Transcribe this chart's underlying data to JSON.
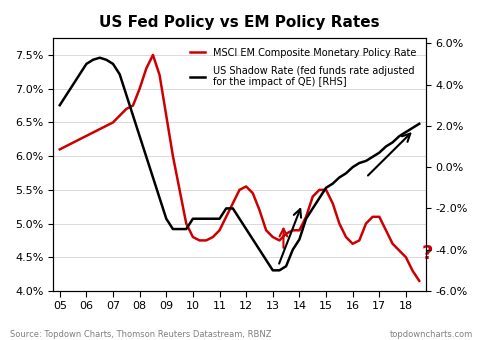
{
  "title": "US Fed Policy vs EM Policy Rates",
  "source": "Source: Topdown Charts, Thomson Reuters Datastream, RBNZ",
  "website": "topdowncharts.com",
  "left_ylim": [
    4.0,
    7.75
  ],
  "right_ylim": [
    -6.0,
    6.25
  ],
  "left_yticks": [
    4.0,
    4.5,
    5.0,
    5.5,
    6.0,
    6.5,
    7.0,
    7.5
  ],
  "right_yticks": [
    -6.0,
    -4.0,
    -2.0,
    0.0,
    2.0,
    4.0,
    6.0
  ],
  "xticks": [
    2005,
    2006,
    2007,
    2008,
    2009,
    2010,
    2011,
    2012,
    2013,
    2014,
    2015,
    2016,
    2017,
    2018
  ],
  "xticklabels": [
    "05",
    "06",
    "07",
    "08",
    "09",
    "10",
    "11",
    "12",
    "13",
    "14",
    "15",
    "16",
    "17",
    "18"
  ],
  "em_color": "#cc0000",
  "us_color": "#000000",
  "legend_em": "MSCI EM Composite Monetary Policy Rate",
  "legend_us": "US Shadow Rate (fed funds rate adjusted\nfor the impact of QE) [RHS]",
  "em_x": [
    2005.0,
    2005.25,
    2005.5,
    2005.75,
    2006.0,
    2006.25,
    2006.5,
    2006.75,
    2007.0,
    2007.25,
    2007.5,
    2007.75,
    2008.0,
    2008.25,
    2008.5,
    2008.75,
    2009.0,
    2009.25,
    2009.5,
    2009.75,
    2010.0,
    2010.25,
    2010.5,
    2010.75,
    2011.0,
    2011.25,
    2011.5,
    2011.75,
    2012.0,
    2012.25,
    2012.5,
    2012.75,
    2013.0,
    2013.25,
    2013.5,
    2013.75,
    2014.0,
    2014.25,
    2014.5,
    2014.75,
    2015.0,
    2015.25,
    2015.5,
    2015.75,
    2016.0,
    2016.25,
    2016.5,
    2016.75,
    2017.0,
    2017.25,
    2017.5,
    2017.75,
    2018.0,
    2018.25,
    2018.5
  ],
  "em_y": [
    6.1,
    6.15,
    6.2,
    6.25,
    6.3,
    6.35,
    6.4,
    6.45,
    6.5,
    6.6,
    6.7,
    6.75,
    7.0,
    7.3,
    7.5,
    7.2,
    6.6,
    6.0,
    5.5,
    5.0,
    4.8,
    4.75,
    4.75,
    4.8,
    4.9,
    5.1,
    5.3,
    5.5,
    5.55,
    5.45,
    5.2,
    4.9,
    4.8,
    4.75,
    4.85,
    4.9,
    4.9,
    5.1,
    5.4,
    5.5,
    5.5,
    5.3,
    5.0,
    4.8,
    4.7,
    4.75,
    5.0,
    5.1,
    5.1,
    4.9,
    4.7,
    4.6,
    4.5,
    4.3,
    4.15
  ],
  "us_x": [
    2005.0,
    2005.25,
    2005.5,
    2005.75,
    2006.0,
    2006.25,
    2006.5,
    2006.75,
    2007.0,
    2007.25,
    2007.5,
    2007.75,
    2008.0,
    2008.25,
    2008.5,
    2008.75,
    2009.0,
    2009.25,
    2009.5,
    2009.75,
    2010.0,
    2010.25,
    2010.5,
    2010.75,
    2011.0,
    2011.25,
    2011.5,
    2011.75,
    2012.0,
    2012.25,
    2012.5,
    2012.75,
    2013.0,
    2013.25,
    2013.5,
    2013.75,
    2014.0,
    2014.25,
    2014.5,
    2014.75,
    2015.0,
    2015.25,
    2015.5,
    2015.75,
    2016.0,
    2016.25,
    2016.5,
    2016.75,
    2017.0,
    2017.25,
    2017.5,
    2017.75,
    2018.0,
    2018.25,
    2018.5
  ],
  "us_y": [
    3.0,
    3.5,
    4.0,
    4.5,
    5.0,
    5.2,
    5.3,
    5.2,
    5.0,
    4.5,
    3.5,
    2.5,
    1.5,
    0.5,
    -0.5,
    -1.5,
    -2.5,
    -3.0,
    -3.0,
    -3.0,
    -2.5,
    -2.5,
    -2.5,
    -2.5,
    -2.5,
    -2.0,
    -2.0,
    -2.5,
    -3.0,
    -3.5,
    -4.0,
    -4.5,
    -5.0,
    -5.0,
    -4.8,
    -4.0,
    -3.5,
    -2.5,
    -2.0,
    -1.5,
    -1.0,
    -0.8,
    -0.5,
    -0.3,
    0.0,
    0.2,
    0.3,
    0.5,
    0.7,
    1.0,
    1.2,
    1.5,
    1.7,
    1.9,
    2.1
  ]
}
